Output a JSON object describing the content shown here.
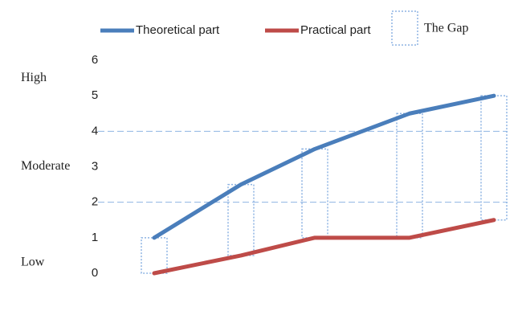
{
  "chart_data": {
    "type": "line",
    "categories": [
      null,
      null,
      null,
      null,
      null
    ],
    "series": [
      {
        "name": "Theoretical part",
        "color": "#4a7ebb",
        "values": [
          1,
          2.5,
          3.5,
          4.5,
          5
        ]
      },
      {
        "name": "Practical part",
        "color": "#be4b48",
        "values": [
          0,
          0.5,
          1,
          1,
          1.5
        ]
      }
    ],
    "gap_label": "The Gap",
    "gap_color": "#8eb4e3",
    "ylim": [
      0,
      6
    ],
    "yticks": [
      0,
      1,
      2,
      3,
      4,
      5,
      6
    ],
    "dashed_ylines": [
      2,
      4
    ],
    "annotations": [
      {
        "text": "High",
        "y": 5.5
      },
      {
        "text": "Moderate",
        "y": 3
      },
      {
        "text": "Low",
        "y": 0.3
      }
    ]
  }
}
